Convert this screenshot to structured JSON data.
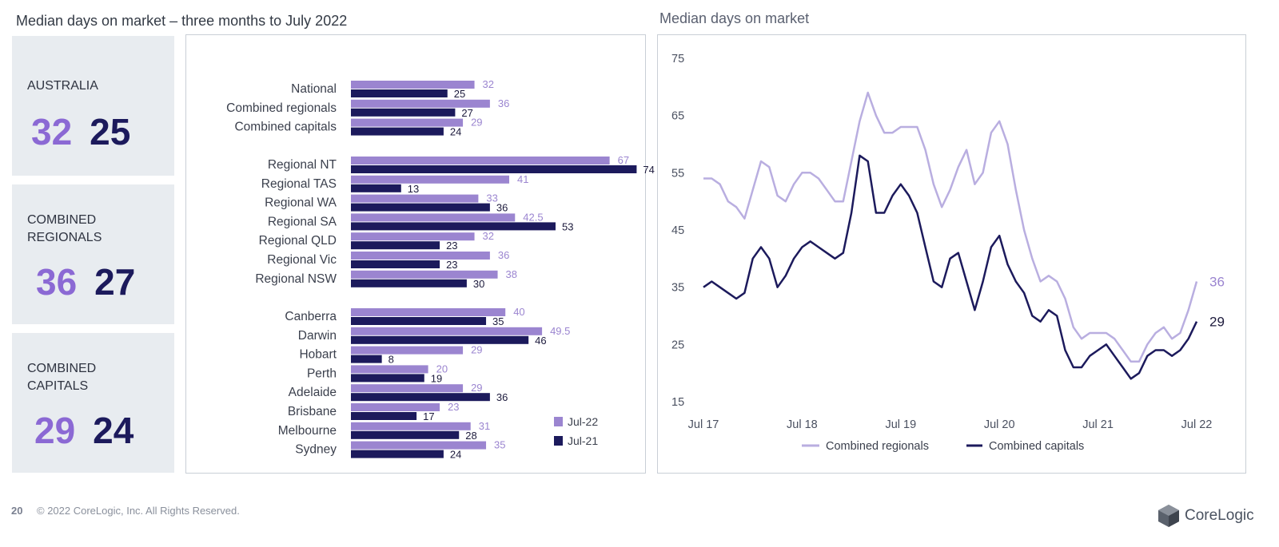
{
  "left_title": "Median days on market – three months to July 2022",
  "right_title": "Median days on market",
  "stats": [
    {
      "label_lines": [
        "AUSTRALIA"
      ],
      "now": "32",
      "prev": "25"
    },
    {
      "label_lines": [
        "COMBINED",
        "REGIONALS"
      ],
      "now": "36",
      "prev": "27"
    },
    {
      "label_lines": [
        "COMBINED",
        "CAPITALS"
      ],
      "now": "29",
      "prev": "24"
    }
  ],
  "colors": {
    "jul22": "#9b85d0",
    "jul21": "#1c1a5c",
    "regionals_line": "#b9aee0",
    "capitals_line": "#1c1a5c",
    "now_big": "#8b69d4"
  },
  "chart_data": [
    {
      "type": "bar",
      "orientation": "horizontal",
      "categories": [
        "National",
        "Combined regionals",
        "Combined capitals",
        "Regional NT",
        "Regional TAS",
        "Regional WA",
        "Regional SA",
        "Regional QLD",
        "Regional Vic",
        "Regional NSW",
        "Canberra",
        "Darwin",
        "Hobart",
        "Perth",
        "Adelaide",
        "Brisbane",
        "Melbourne",
        "Sydney"
      ],
      "groups": [
        [
          0,
          1,
          2
        ],
        [
          3,
          4,
          5,
          6,
          7,
          8,
          9
        ],
        [
          10,
          11,
          12,
          13,
          14,
          15,
          16,
          17
        ]
      ],
      "series": [
        {
          "name": "Jul-22",
          "values": [
            32,
            36,
            29,
            67,
            41,
            33,
            42.5,
            32,
            36,
            38,
            40,
            49.5,
            29,
            20,
            29,
            23,
            31,
            35
          ],
          "labels": [
            "32",
            "36",
            "29",
            "67",
            "41",
            "33",
            "42.5",
            "32",
            "36",
            "38",
            "40",
            "49.5",
            "29",
            "20",
            "29",
            "23",
            "31",
            "35"
          ]
        },
        {
          "name": "Jul-21",
          "values": [
            25,
            27,
            24,
            74,
            13,
            36,
            53,
            23,
            23,
            30,
            35,
            46,
            8,
            19,
            36,
            17,
            28,
            24
          ],
          "labels": [
            "25",
            "27",
            "24",
            "74",
            "13",
            "36",
            "53",
            "23",
            "23",
            "30",
            "35",
            "46",
            "8",
            "19",
            "36",
            "17",
            "28",
            "24"
          ]
        }
      ],
      "xlim": [
        0,
        80
      ],
      "legend": "bottom-right"
    },
    {
      "type": "line",
      "x_ticks": [
        "Jul 17",
        "Jul 18",
        "Jul 19",
        "Jul 20",
        "Jul 21",
        "Jul 22"
      ],
      "y_ticks": [
        75,
        65,
        55,
        45,
        35,
        25,
        15
      ],
      "ylim": [
        15,
        75
      ],
      "x_start": "Jul 17",
      "x_end": "Jul 22",
      "series": [
        {
          "name": "Combined regionals",
          "end_label": "36",
          "values": [
            54,
            54,
            53,
            50,
            49,
            47,
            52,
            57,
            56,
            51,
            50,
            53,
            55,
            55,
            54,
            52,
            50,
            50,
            57,
            64,
            69,
            65,
            62,
            62,
            63,
            63,
            63,
            59,
            53,
            49,
            52,
            56,
            59,
            53,
            55,
            62,
            64,
            60,
            52,
            45,
            40,
            36,
            37,
            36,
            33,
            28,
            26,
            27,
            27,
            27,
            26,
            24,
            22,
            22,
            25,
            27,
            28,
            26,
            27,
            31,
            36
          ]
        },
        {
          "name": "Combined capitals",
          "end_label": "29",
          "values": [
            35,
            36,
            35,
            34,
            33,
            34,
            40,
            42,
            40,
            35,
            37,
            40,
            42,
            43,
            42,
            41,
            40,
            41,
            48,
            58,
            57,
            48,
            48,
            51,
            53,
            51,
            48,
            42,
            36,
            35,
            40,
            41,
            36,
            31,
            36,
            42,
            44,
            39,
            36,
            34,
            30,
            29,
            31,
            30,
            24,
            21,
            21,
            23,
            24,
            25,
            23,
            21,
            19,
            20,
            23,
            24,
            24,
            23,
            24,
            26,
            29
          ]
        }
      ],
      "legend": "bottom-center"
    }
  ],
  "footer": {
    "page": "20",
    "copyright": "© 2022 CoreLogic, Inc. All Rights Reserved."
  },
  "logo_text": "CoreLogic"
}
